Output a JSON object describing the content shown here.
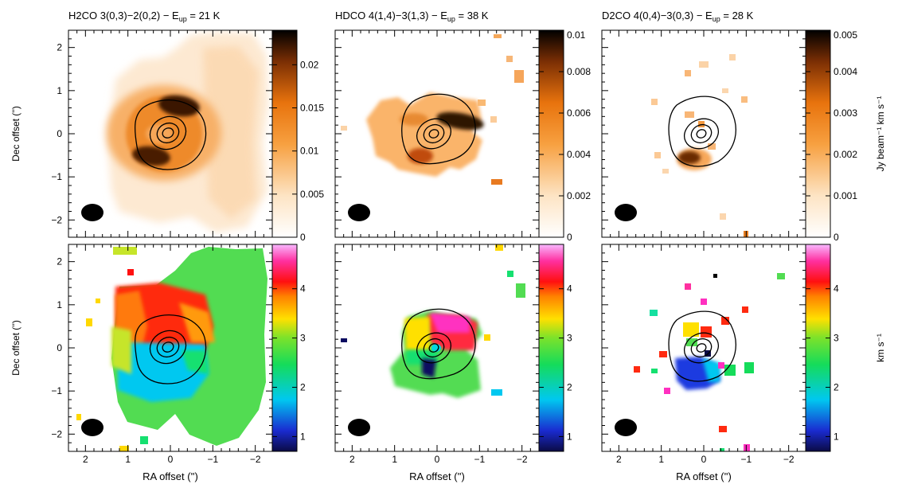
{
  "chart_data": {
    "type": "heatmap",
    "x_label": "RA offset ('')",
    "y_label": "Dec offset ('')",
    "xlim": [
      2.4,
      -2.4
    ],
    "ylim": [
      -2.4,
      2.4
    ],
    "x_ticks": [
      2,
      1,
      0,
      -1,
      -2
    ],
    "y_ticks": [
      2,
      1,
      0,
      -1,
      -2
    ],
    "beam": {
      "x": 1.95,
      "y": -1.95,
      "major": 0.42,
      "minor": 0.33
    },
    "contours_arcsec": [
      [
        0.13,
        0.1
      ],
      [
        0.24,
        0.19
      ],
      [
        0.37,
        0.3
      ],
      [
        0.8,
        0.68
      ]
    ],
    "panels": [
      {
        "row": "moment0",
        "title": "H2CO 3(0,3)−2(0,2) − E",
        "title_sub": "up",
        "title_suffix": " = 21 K",
        "colorbar": {
          "min": 0,
          "max": 0.024,
          "ticks": [
            0,
            0.005,
            0.01,
            0.015,
            0.02
          ],
          "tick_labels": [
            "0",
            "0.005",
            "0.01",
            "0.015",
            "0.02"
          ],
          "cmap": "heat"
        },
        "emission_lobes": [
          {
            "x": -0.15,
            "y": 0.6,
            "value": 0.024
          },
          {
            "x": 0.3,
            "y": -0.55,
            "value": 0.021
          }
        ]
      },
      {
        "row": "moment0",
        "title": "HDCO 4(1,4)−3(1,3) − E",
        "title_sub": "up",
        "title_suffix": " = 38 K",
        "colorbar": {
          "min": 0,
          "max": 0.01,
          "ticks": [
            0,
            0.002,
            0.004,
            0.006,
            0.008,
            0.01
          ],
          "tick_labels": [
            "0",
            "0.002",
            "0.004",
            "0.006",
            "0.008",
            "0.01"
          ],
          "cmap": "heat"
        },
        "emission_lobes": [
          {
            "x": -0.35,
            "y": 0.35,
            "value": 0.0095
          },
          {
            "x": 0.4,
            "y": -0.5,
            "value": 0.0085
          }
        ]
      },
      {
        "row": "moment0",
        "title": "D2CO 4(0,4)−3(0,3) − E",
        "title_sub": "up",
        "title_suffix": " = 28 K",
        "colorbar": {
          "min": 0,
          "max": 0.005,
          "ticks": [
            0,
            0.001,
            0.002,
            0.003,
            0.004,
            0.005
          ],
          "tick_labels": [
            "0",
            "0.001",
            "0.002",
            "0.003",
            "0.004",
            "0.005"
          ],
          "cmap": "heat",
          "unit_label": "Jy beam⁻¹ km s⁻¹"
        },
        "emission_lobes": [
          {
            "x": 0.25,
            "y": -0.55,
            "value": 0.0048
          }
        ]
      },
      {
        "row": "moment1",
        "colorbar": {
          "min": 0.7,
          "max": 4.9,
          "ticks": [
            1,
            2,
            3,
            4
          ],
          "tick_labels": [
            "1",
            "2",
            "3",
            "4"
          ],
          "cmap": "rainbow"
        }
      },
      {
        "row": "moment1",
        "colorbar": {
          "min": 0.7,
          "max": 4.9,
          "ticks": [
            1,
            2,
            3,
            4
          ],
          "tick_labels": [
            "1",
            "2",
            "3",
            "4"
          ],
          "cmap": "rainbow"
        }
      },
      {
        "row": "moment1",
        "colorbar": {
          "min": 0.7,
          "max": 4.9,
          "ticks": [
            1,
            2,
            3,
            4
          ],
          "tick_labels": [
            "1",
            "2",
            "3",
            "4"
          ],
          "cmap": "rainbow",
          "unit_label": "km s⁻¹"
        }
      }
    ]
  }
}
